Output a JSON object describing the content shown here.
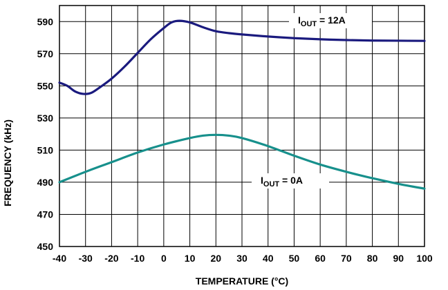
{
  "chart_data": {
    "type": "line",
    "title": "",
    "xlabel": "TEMPERATURE (°C)",
    "ylabel": "FREQUENCY (kHz)",
    "xlim": [
      -40,
      100
    ],
    "ylim": [
      450,
      600
    ],
    "x_ticks": [
      -40,
      -30,
      -20,
      -10,
      0,
      10,
      20,
      30,
      40,
      50,
      60,
      70,
      80,
      90,
      100
    ],
    "y_ticks": [
      450,
      470,
      490,
      510,
      530,
      550,
      570,
      590
    ],
    "grid": true,
    "series": [
      {
        "name": "IOUT = 12A",
        "label_main": "I",
        "label_sub": "OUT",
        "label_rest": " = 12A",
        "color": "#1a1a7e",
        "points": [
          [
            -40,
            552
          ],
          [
            -37,
            550
          ],
          [
            -34,
            546.5
          ],
          [
            -31,
            545
          ],
          [
            -28,
            545.5
          ],
          [
            -25,
            548.5
          ],
          [
            -20,
            554.5
          ],
          [
            -15,
            562
          ],
          [
            -10,
            570.5
          ],
          [
            -5,
            579
          ],
          [
            0,
            586
          ],
          [
            3,
            589.5
          ],
          [
            6,
            590.5
          ],
          [
            10,
            589.5
          ],
          [
            15,
            586.5
          ],
          [
            20,
            584
          ],
          [
            25,
            582.8
          ],
          [
            30,
            582
          ],
          [
            40,
            580.7
          ],
          [
            50,
            579.7
          ],
          [
            60,
            579
          ],
          [
            70,
            578.5
          ],
          [
            80,
            578.2
          ],
          [
            90,
            578.1
          ],
          [
            100,
            578
          ]
        ]
      },
      {
        "name": "IOUT = 0A",
        "label_main": "I",
        "label_sub": "OUT",
        "label_rest": " = 0A",
        "color": "#17908c",
        "points": [
          [
            -40,
            490
          ],
          [
            -30,
            496.5
          ],
          [
            -20,
            502.5
          ],
          [
            -10,
            508.5
          ],
          [
            0,
            513.5
          ],
          [
            10,
            517.5
          ],
          [
            15,
            519
          ],
          [
            20,
            519.5
          ],
          [
            25,
            519
          ],
          [
            30,
            517.5
          ],
          [
            40,
            512.5
          ],
          [
            50,
            506.5
          ],
          [
            60,
            501
          ],
          [
            70,
            496.5
          ],
          [
            80,
            492.5
          ],
          [
            90,
            489
          ],
          [
            100,
            486
          ]
        ]
      }
    ]
  }
}
